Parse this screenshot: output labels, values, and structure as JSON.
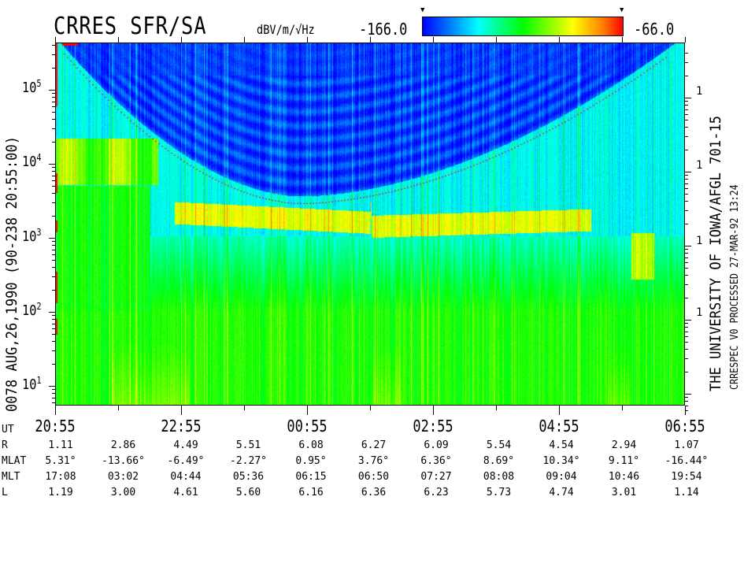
{
  "header": {
    "title": "CRRES SFR/SA",
    "units": "dBV/m/√Hz",
    "colorbar_min": "-166.0",
    "colorbar_max": "-66.0",
    "colorbar_colors": [
      "#0000ff",
      "#00ffff",
      "#00ff00",
      "#ffff00",
      "#ff8000",
      "#ff0000"
    ]
  },
  "left_label": "0078  AUG,26,1990  (90-238 20:55:00)",
  "right_label": "THE UNIVERSITY OF IOWA/AFGL 701-15",
  "right_sublabel": "CRRESPEC V0    PROCESSED 27-MAR-92  13:24",
  "chart_data": {
    "type": "heatmap",
    "title": "CRRES SFR/SA",
    "colorbar": {
      "label": "dBV/m/√Hz",
      "min": -166.0,
      "max": -66.0
    },
    "y_axis": {
      "scale": "log",
      "ticks": [
        "10^1",
        "10^2",
        "10^3",
        "10^4",
        "10^5"
      ],
      "range": [
        5,
        400000
      ]
    },
    "right_axis_ticks": [
      "1",
      "1",
      "1",
      "1"
    ],
    "x_axis": {
      "ticks": [
        "20:55",
        "22:55",
        "00:55",
        "02:55",
        "04:55",
        "06:55"
      ],
      "range": [
        "20:55",
        "06:55"
      ]
    },
    "overlay": "red dotted curve (U-shaped), minimum near 00:55 at ~3x10^3"
  },
  "ephemeris": {
    "ut_label": "UT",
    "ut": [
      "20:55",
      "22:55",
      "00:55",
      "02:55",
      "04:55",
      "06:55"
    ],
    "rows": [
      {
        "label": "R",
        "values": [
          "1.11",
          "2.86",
          "4.49",
          "5.51",
          "6.08",
          "6.27",
          "6.09",
          "5.54",
          "4.54",
          "2.94",
          "1.07"
        ]
      },
      {
        "label": "MLAT",
        "values": [
          "5.31°",
          "-13.66°",
          "-6.49°",
          "-2.27°",
          "0.95°",
          "3.76°",
          "6.36°",
          "8.69°",
          "10.34°",
          "9.11°",
          "-16.44°"
        ]
      },
      {
        "label": "MLT",
        "values": [
          "17:08",
          "03:02",
          "04:44",
          "05:36",
          "06:15",
          "06:50",
          "07:27",
          "08:08",
          "09:04",
          "10:46",
          "19:54"
        ]
      },
      {
        "label": "L",
        "values": [
          "1.19",
          "3.00",
          "4.61",
          "5.60",
          "6.16",
          "6.36",
          "6.23",
          "5.73",
          "4.74",
          "3.01",
          "1.14"
        ]
      }
    ]
  }
}
